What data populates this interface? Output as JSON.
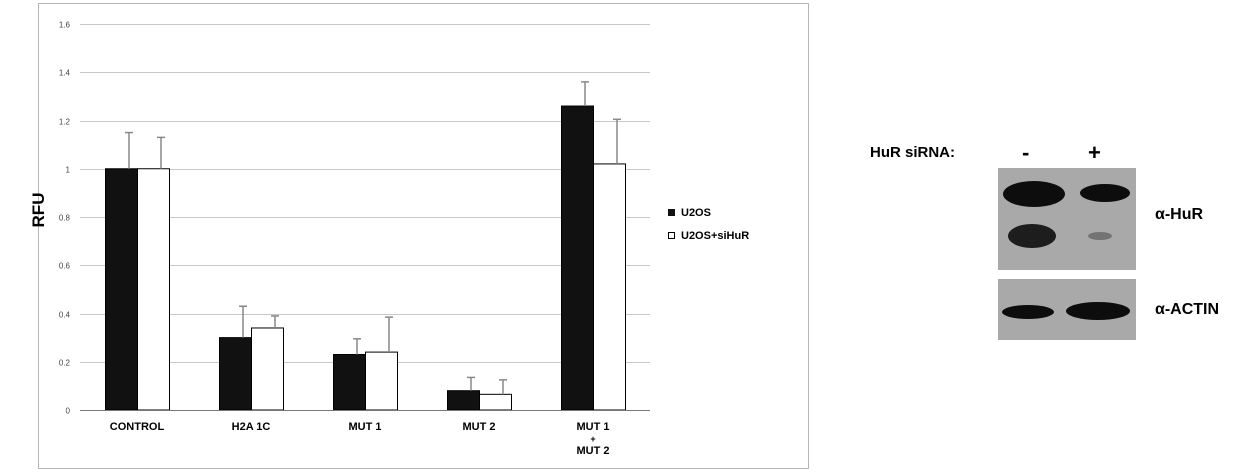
{
  "chart_data": {
    "type": "bar",
    "categories": [
      "CONTROL",
      "H2A 1C",
      "MUT 1",
      "MUT 2",
      "MUT 1\n+\nMUT 2"
    ],
    "series": [
      {
        "name": "U2OS",
        "values": [
          1.0,
          0.3,
          0.23,
          0.08,
          1.26
        ],
        "errors": [
          0.15,
          0.13,
          0.065,
          0.055,
          0.1
        ],
        "color": "#111111"
      },
      {
        "name": "U2OS+siHuR",
        "values": [
          1.0,
          0.34,
          0.24,
          0.065,
          1.02
        ],
        "errors": [
          0.13,
          0.05,
          0.145,
          0.06,
          0.185
        ],
        "color": "#ffffff"
      }
    ],
    "ylabel": "RFU",
    "ylim": [
      0,
      1.6
    ],
    "yticks": [
      "0",
      "0.2",
      "0.4",
      "0.6",
      "0.8",
      "1",
      "1.2",
      "1.4",
      "1.6"
    ],
    "grid": true,
    "legend_position": "right"
  },
  "blot": {
    "title": "HuR siRNA:",
    "lanes": [
      "-",
      "+"
    ],
    "antibodies": [
      "α-HuR",
      "α-ACTIN"
    ]
  }
}
